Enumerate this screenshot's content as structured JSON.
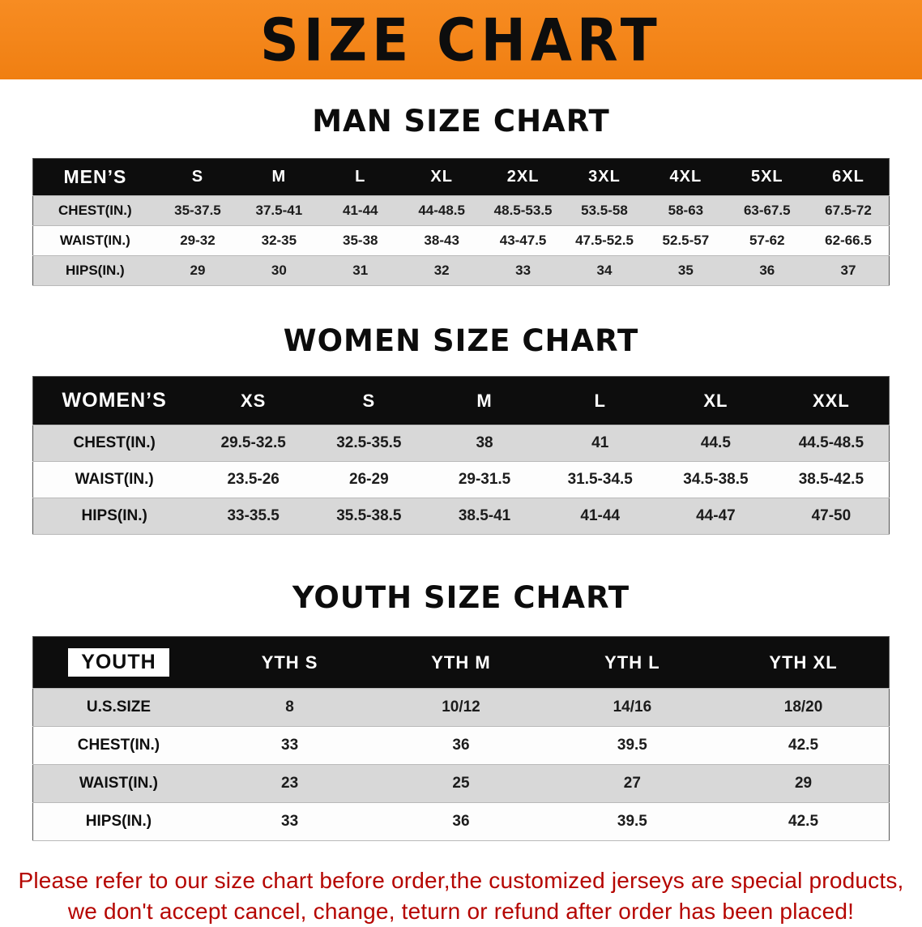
{
  "banner": {
    "title": "SIZE CHART"
  },
  "colors": {
    "banner_bg": "#f0830f",
    "header_bg": "#0d0d0d",
    "stripe_gray": "#d8d8d8",
    "disclaimer_red": "#b50500"
  },
  "sections": [
    {
      "heading": "MAN SIZE CHART",
      "table": {
        "header": [
          "MEN’S",
          "S",
          "M",
          "L",
          "XL",
          "2XL",
          "3XL",
          "4XL",
          "5XL",
          "6XL"
        ],
        "rows": [
          [
            "CHEST(IN.)",
            "35-37.5",
            "37.5-41",
            "41-44",
            "44-48.5",
            "48.5-53.5",
            "53.5-58",
            "58-63",
            "63-67.5",
            "67.5-72"
          ],
          [
            "WAIST(IN.)",
            "29-32",
            "32-35",
            "35-38",
            "38-43",
            "43-47.5",
            "47.5-52.5",
            "52.5-57",
            "57-62",
            "62-66.5"
          ],
          [
            "HIPS(IN.)",
            "29",
            "30",
            "31",
            "32",
            "33",
            "34",
            "35",
            "36",
            "37"
          ]
        ]
      }
    },
    {
      "heading": "WOMEN SIZE CHART",
      "table": {
        "header": [
          "WOMEN’S",
          "XS",
          "S",
          "M",
          "L",
          "XL",
          "XXL"
        ],
        "rows": [
          [
            "CHEST(IN.)",
            "29.5-32.5",
            "32.5-35.5",
            "38",
            "41",
            "44.5",
            "44.5-48.5"
          ],
          [
            "WAIST(IN.)",
            "23.5-26",
            "26-29",
            "29-31.5",
            "31.5-34.5",
            "34.5-38.5",
            "38.5-42.5"
          ],
          [
            "HIPS(IN.)",
            "33-35.5",
            "35.5-38.5",
            "38.5-41",
            "41-44",
            "44-47",
            "47-50"
          ]
        ]
      }
    },
    {
      "heading": "YOUTH SIZE CHART",
      "table": {
        "header": [
          "YOUTH",
          "YTH S",
          "YTH M",
          "YTH L",
          "YTH XL"
        ],
        "rows": [
          [
            "U.S.SIZE",
            "8",
            "10/12",
            "14/16",
            "18/20"
          ],
          [
            "CHEST(IN.)",
            "33",
            "36",
            "39.5",
            "42.5"
          ],
          [
            "WAIST(IN.)",
            "23",
            "25",
            "27",
            "29"
          ],
          [
            "HIPS(IN.)",
            "33",
            "36",
            "39.5",
            "42.5"
          ]
        ]
      }
    }
  ],
  "footer": {
    "line1": "Please refer to our size chart before order,the customized jerseys are special products,",
    "line2": "we don't accept cancel, change, teturn or refund after order has been placed!"
  }
}
